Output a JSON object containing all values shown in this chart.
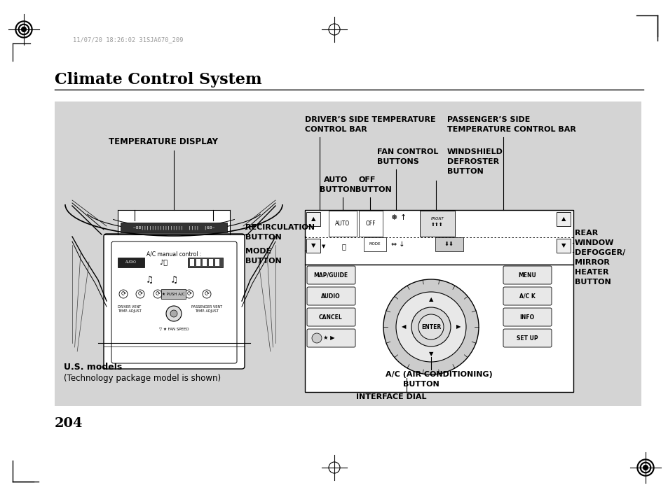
{
  "title": "Climate Control System",
  "page_number": "204",
  "timestamp": "11/07/20 18:26:02 31SJA670_209",
  "bg_color": "#ffffff",
  "diagram_bg": "#d4d4d4",
  "labels": {
    "temperature_display": "TEMPERATURE DISPLAY",
    "drivers_side_1": "DRIVER’S SIDE TEMPERATURE",
    "drivers_side_2": "CONTROL BAR",
    "passengers_side_1": "PASSENGER’S SIDE",
    "passengers_side_2": "TEMPERATURE CONTROL BAR",
    "fan_control_1": "FAN CONTROL",
    "fan_control_2": "BUTTONS",
    "windshield_1": "WINDSHIELD",
    "windshield_2": "DEFROSTER",
    "windshield_3": "BUTTON",
    "auto_1": "AUTO",
    "auto_2": "BUTTON",
    "off_1": "OFF",
    "off_2": "BUTTON",
    "recirc_1": "RECIRCULATION",
    "recirc_2": "BUTTON",
    "mode_1": "MODE",
    "mode_2": "BUTTON",
    "rear_1": "REAR",
    "rear_2": "WINDOW",
    "rear_3": "DEFOGGER/",
    "rear_4": "MIRROR",
    "rear_5": "HEATER",
    "rear_6": "BUTTON",
    "ac_1": "A/C (AIR CONDITIONING)",
    "ac_2": "BUTTON",
    "interface_dial": "INTERFACE DIAL",
    "us_models_1": "U.S. models",
    "us_models_2": "(Technology package model is shown)"
  }
}
